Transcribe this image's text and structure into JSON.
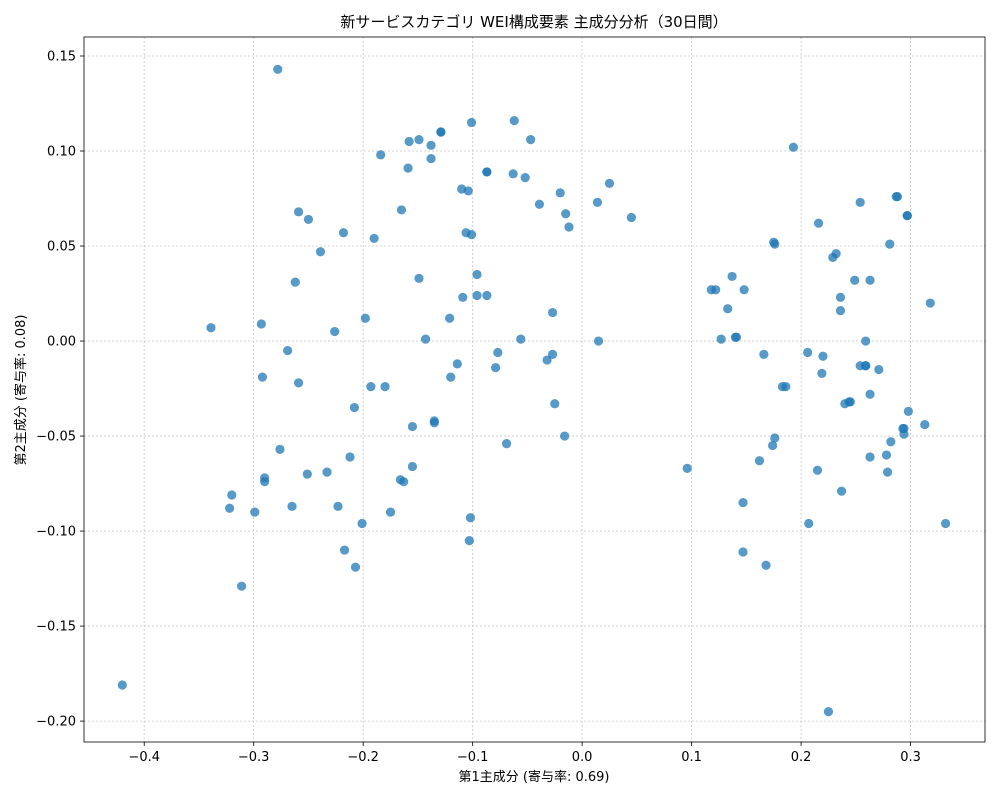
{
  "chart_data": {
    "type": "scatter",
    "title": "新サービスカテゴリ WEI構成要素 主成分分析（30日間）",
    "xlabel": "第1主成分 (寄与率: 0.69)",
    "ylabel": "第2主成分 (寄与率: 0.08)",
    "xlim": [
      -0.455,
      0.368
    ],
    "ylim": [
      -0.211,
      0.16
    ],
    "xticks": [
      -0.4,
      -0.3,
      -0.2,
      -0.1,
      0.0,
      0.1,
      0.2,
      0.3
    ],
    "xtick_labels": [
      "−0.4",
      "−0.3",
      "−0.2",
      "−0.1",
      "0.0",
      "0.1",
      "0.2",
      "0.3"
    ],
    "yticks": [
      0.15,
      0.1,
      0.05,
      0.0,
      -0.05,
      -0.1,
      -0.15,
      -0.2
    ],
    "ytick_labels": [
      "0.15",
      "0.10",
      "0.05",
      "0.00",
      "−0.05",
      "−0.10",
      "−0.15",
      "−0.20"
    ],
    "grid": true,
    "marker_color": "#1f77b4",
    "marker_opacity": 0.75,
    "points": [
      [
        -0.278,
        0.143
      ],
      [
        -0.339,
        0.007
      ],
      [
        -0.293,
        0.009
      ],
      [
        -0.269,
        -0.005
      ],
      [
        -0.292,
        -0.019
      ],
      [
        -0.259,
        -0.022
      ],
      [
        -0.276,
        -0.057
      ],
      [
        -0.29,
        -0.072
      ],
      [
        -0.29,
        -0.074
      ],
      [
        -0.251,
        -0.07
      ],
      [
        -0.265,
        -0.087
      ],
      [
        -0.299,
        -0.09
      ],
      [
        -0.32,
        -0.081
      ],
      [
        -0.322,
        -0.088
      ],
      [
        -0.311,
        -0.129
      ],
      [
        -0.42,
        -0.181
      ],
      [
        -0.259,
        0.068
      ],
      [
        -0.25,
        0.064
      ],
      [
        -0.262,
        0.031
      ],
      [
        -0.239,
        0.047
      ],
      [
        -0.218,
        0.057
      ],
      [
        -0.226,
        0.005
      ],
      [
        -0.233,
        -0.069
      ],
      [
        -0.223,
        -0.087
      ],
      [
        -0.217,
        -0.11
      ],
      [
        -0.207,
        -0.119
      ],
      [
        -0.201,
        -0.096
      ],
      [
        -0.212,
        -0.061
      ],
      [
        -0.208,
        -0.035
      ],
      [
        -0.193,
        -0.024
      ],
      [
        -0.18,
        -0.024
      ],
      [
        -0.198,
        0.012
      ],
      [
        -0.19,
        0.054
      ],
      [
        -0.184,
        0.098
      ],
      [
        -0.175,
        -0.09
      ],
      [
        -0.166,
        -0.073
      ],
      [
        -0.163,
        -0.074
      ],
      [
        -0.165,
        0.069
      ],
      [
        -0.155,
        -0.066
      ],
      [
        -0.155,
        -0.045
      ],
      [
        -0.149,
        0.033
      ],
      [
        -0.143,
        0.001
      ],
      [
        -0.159,
        0.091
      ],
      [
        -0.158,
        0.105
      ],
      [
        -0.149,
        0.106
      ],
      [
        -0.138,
        0.103
      ],
      [
        -0.138,
        0.096
      ],
      [
        -0.129,
        0.11
      ],
      [
        -0.129,
        0.11
      ],
      [
        -0.135,
        -0.043
      ],
      [
        -0.135,
        -0.042
      ],
      [
        -0.12,
        -0.019
      ],
      [
        -0.114,
        -0.012
      ],
      [
        -0.121,
        0.012
      ],
      [
        -0.109,
        0.023
      ],
      [
        -0.11,
        0.08
      ],
      [
        -0.104,
        0.079
      ],
      [
        -0.106,
        0.057
      ],
      [
        -0.101,
        0.056
      ],
      [
        -0.101,
        0.115
      ],
      [
        -0.102,
        -0.093
      ],
      [
        -0.103,
        -0.105
      ],
      [
        -0.096,
        0.035
      ],
      [
        -0.096,
        0.024
      ],
      [
        -0.087,
        0.024
      ],
      [
        -0.087,
        0.089
      ],
      [
        -0.087,
        0.089
      ],
      [
        -0.077,
        -0.006
      ],
      [
        -0.079,
        -0.014
      ],
      [
        -0.069,
        -0.054
      ],
      [
        -0.063,
        0.088
      ],
      [
        -0.062,
        0.116
      ],
      [
        -0.052,
        0.086
      ],
      [
        -0.056,
        0.001
      ],
      [
        -0.047,
        0.106
      ],
      [
        -0.039,
        0.072
      ],
      [
        -0.032,
        -0.01
      ],
      [
        -0.027,
        -0.007
      ],
      [
        -0.027,
        0.015
      ],
      [
        -0.025,
        -0.033
      ],
      [
        -0.02,
        0.078
      ],
      [
        -0.015,
        0.067
      ],
      [
        -0.012,
        0.06
      ],
      [
        -0.016,
        -0.05
      ],
      [
        0.014,
        0.073
      ],
      [
        0.015,
        0.0
      ],
      [
        0.025,
        0.083
      ],
      [
        0.045,
        0.065
      ],
      [
        0.096,
        -0.067
      ],
      [
        0.118,
        0.027
      ],
      [
        0.122,
        0.027
      ],
      [
        0.127,
        0.001
      ],
      [
        0.133,
        0.017
      ],
      [
        0.137,
        0.034
      ],
      [
        0.14,
        0.002
      ],
      [
        0.141,
        0.002
      ],
      [
        0.148,
        0.027
      ],
      [
        0.147,
        -0.085
      ],
      [
        0.147,
        -0.111
      ],
      [
        0.162,
        -0.063
      ],
      [
        0.168,
        -0.118
      ],
      [
        0.166,
        -0.007
      ],
      [
        0.174,
        -0.055
      ],
      [
        0.176,
        -0.051
      ],
      [
        0.175,
        0.052
      ],
      [
        0.176,
        0.051
      ],
      [
        0.183,
        -0.024
      ],
      [
        0.186,
        -0.024
      ],
      [
        0.193,
        0.102
      ],
      [
        0.206,
        -0.006
      ],
      [
        0.207,
        -0.096
      ],
      [
        0.215,
        -0.068
      ],
      [
        0.216,
        0.062
      ],
      [
        0.22,
        -0.008
      ],
      [
        0.219,
        -0.017
      ],
      [
        0.225,
        -0.195
      ],
      [
        0.229,
        0.044
      ],
      [
        0.232,
        0.046
      ],
      [
        0.236,
        0.023
      ],
      [
        0.236,
        0.016
      ],
      [
        0.237,
        -0.079
      ],
      [
        0.24,
        -0.033
      ],
      [
        0.244,
        -0.032
      ],
      [
        0.245,
        -0.032
      ],
      [
        0.249,
        0.032
      ],
      [
        0.254,
        0.073
      ],
      [
        0.254,
        -0.013
      ],
      [
        0.259,
        -0.013
      ],
      [
        0.259,
        -0.013
      ],
      [
        0.259,
        0.0
      ],
      [
        0.263,
        0.032
      ],
      [
        0.263,
        -0.028
      ],
      [
        0.263,
        -0.061
      ],
      [
        0.271,
        -0.015
      ],
      [
        0.278,
        -0.06
      ],
      [
        0.279,
        -0.069
      ],
      [
        0.281,
        0.051
      ],
      [
        0.282,
        -0.053
      ],
      [
        0.287,
        0.076
      ],
      [
        0.288,
        0.076
      ],
      [
        0.293,
        -0.046
      ],
      [
        0.294,
        -0.046
      ],
      [
        0.294,
        -0.049
      ],
      [
        0.297,
        0.066
      ],
      [
        0.297,
        0.066
      ],
      [
        0.298,
        -0.037
      ],
      [
        0.313,
        -0.044
      ],
      [
        0.318,
        0.02
      ],
      [
        0.332,
        -0.096
      ]
    ]
  }
}
